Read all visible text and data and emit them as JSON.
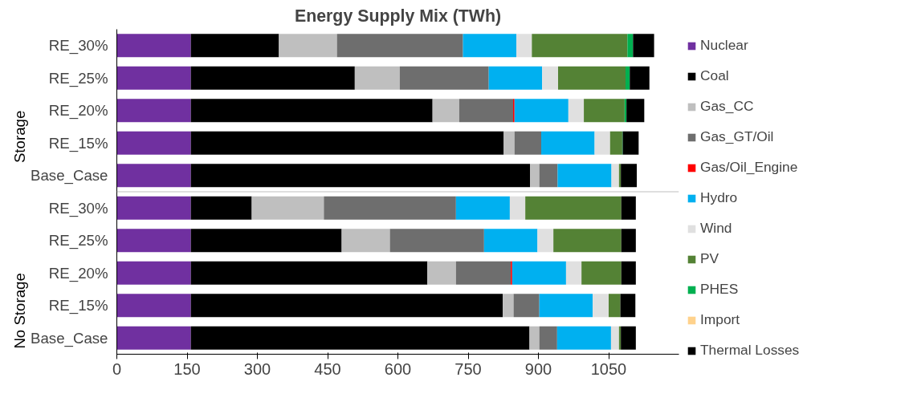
{
  "chart_data": {
    "type": "bar",
    "orientation": "horizontal",
    "stacked": true,
    "title": "Energy Supply Mix (TWh)",
    "categories": [
      "RE_30%",
      "RE_25%",
      "RE_20%",
      "RE_15%",
      "Base_Case",
      "RE_30%",
      "RE_25%",
      "RE_20%",
      "RE_15%",
      "Base_Case"
    ],
    "annotations": [
      "Storage",
      "No Storage"
    ],
    "series": [
      {
        "name": "Nuclear",
        "color": "#7030a0",
        "values": [
          158,
          158,
          158,
          158,
          158,
          158,
          158,
          158,
          158,
          158
        ]
      },
      {
        "name": "Coal",
        "color": "#000000",
        "values": [
          188,
          350,
          516,
          668,
          724,
          130,
          322,
          505,
          666,
          723
        ]
      },
      {
        "name": "Gas_CC",
        "color": "#bfbfbf",
        "values": [
          124,
          96,
          57,
          23,
          20,
          154,
          103,
          61,
          23,
          21
        ]
      },
      {
        "name": "Gas_GT/Oil",
        "color": "#6e6e6e",
        "values": [
          269,
          190,
          115,
          57,
          39,
          282,
          201,
          117,
          55,
          38
        ]
      },
      {
        "name": "Gas/Oil_Engine",
        "color": "#ff0000",
        "values": [
          0,
          0,
          3,
          0,
          0,
          0,
          0,
          3,
          0,
          0
        ]
      },
      {
        "name": "Hydro",
        "color": "#00b0f0",
        "values": [
          114,
          114,
          115,
          114,
          115,
          115,
          114,
          115,
          114,
          115
        ]
      },
      {
        "name": "Wind",
        "color": "#e0e0e0",
        "values": [
          33,
          34,
          33,
          33,
          16,
          33,
          34,
          33,
          34,
          17
        ]
      },
      {
        "name": "PV",
        "color": "#548235",
        "values": [
          204,
          144,
          87,
          26,
          4,
          205,
          145,
          85,
          25,
          4
        ]
      },
      {
        "name": "PHES",
        "color": "#00b050",
        "values": [
          12,
          9,
          4,
          1,
          0,
          0,
          0,
          0,
          0,
          0
        ]
      },
      {
        "name": "Import",
        "color": "#ffd28c",
        "values": [
          0,
          0,
          0,
          0,
          0,
          0,
          0,
          0,
          0,
          0
        ]
      },
      {
        "name": "Thermal Losses",
        "color": "#000000",
        "values": [
          45,
          42,
          38,
          34,
          34,
          31,
          31,
          31,
          32,
          32
        ]
      }
    ],
    "xlim": [
      0,
      1200
    ],
    "xticks": [
      0,
      150,
      300,
      450,
      600,
      750,
      900,
      1050
    ],
    "grid": false,
    "legend": "right"
  }
}
